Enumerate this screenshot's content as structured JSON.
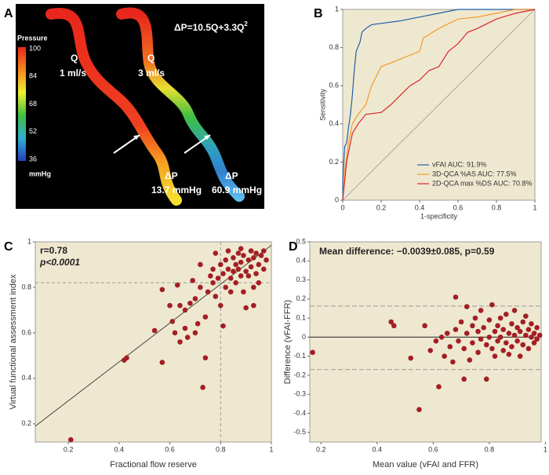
{
  "image_panel": {
    "panel_label": "A",
    "colorbar_title": "Pressure",
    "colorbar_unit": "mmHg",
    "colorbar_ticks": [
      100,
      84,
      68,
      52,
      36
    ],
    "left_flow": {
      "q": "Q",
      "rate": "1 ml/s"
    },
    "right_flow": {
      "q": "Q",
      "rate": "3 ml/s"
    },
    "equation": "ΔP=10.5Q+3.3Q",
    "equation_sup": "2",
    "left_drop": {
      "label": "ΔP",
      "value": "13.7 mmHg"
    },
    "right_drop": {
      "label": "ΔP",
      "value": "60.9 mmHg"
    }
  },
  "chart_data": [
    {
      "type": "line",
      "panel_label": "B",
      "x_label": "1-specificity",
      "y_label": "Sensitivity",
      "xlim": [
        0,
        1
      ],
      "ylim": [
        0,
        1
      ],
      "xticks": [
        0,
        0.2,
        0.4,
        0.6,
        0.8,
        1
      ],
      "yticks": [
        0,
        0.2,
        0.4,
        0.6,
        0.8,
        1
      ],
      "diagonal": true,
      "legend": "lower right",
      "series": [
        {
          "name": "vFAI AUC: 91.9%",
          "color": "#1f5fa8",
          "x": [
            0,
            0,
            0.01,
            0.02,
            0.03,
            0.04,
            0.05,
            0.06,
            0.07,
            0.09,
            0.1,
            0.12,
            0.15,
            0.3,
            0.4,
            0.5,
            0.6,
            1
          ],
          "y": [
            0,
            0.1,
            0.28,
            0.3,
            0.38,
            0.45,
            0.55,
            0.68,
            0.78,
            0.83,
            0.88,
            0.9,
            0.92,
            0.94,
            0.96,
            0.98,
            1,
            1
          ]
        },
        {
          "name": "3D-QCA %AS AUC: 77.5%",
          "color": "#f39a2b",
          "x": [
            0,
            0.01,
            0.03,
            0.05,
            0.08,
            0.12,
            0.15,
            0.2,
            0.25,
            0.3,
            0.35,
            0.4,
            0.42,
            0.5,
            0.6,
            0.7,
            0.8,
            0.9,
            1
          ],
          "y": [
            0,
            0.15,
            0.3,
            0.4,
            0.45,
            0.5,
            0.6,
            0.7,
            0.72,
            0.74,
            0.76,
            0.78,
            0.85,
            0.9,
            0.95,
            0.96,
            0.98,
            1,
            1
          ]
        },
        {
          "name": "2D-QCA max %DS AUC: 70.8%",
          "color": "#d9262c",
          "x": [
            0,
            0.02,
            0.05,
            0.08,
            0.12,
            0.2,
            0.25,
            0.3,
            0.35,
            0.4,
            0.45,
            0.5,
            0.55,
            0.6,
            0.65,
            0.7,
            0.8,
            0.9,
            1
          ],
          "y": [
            0,
            0.2,
            0.35,
            0.4,
            0.45,
            0.46,
            0.5,
            0.55,
            0.6,
            0.63,
            0.68,
            0.7,
            0.78,
            0.82,
            0.88,
            0.9,
            0.95,
            0.98,
            1
          ]
        }
      ]
    },
    {
      "type": "scatter",
      "panel_label": "C",
      "x_label": "Fractional flow reserve",
      "y_label": "Virtual functional assessment index",
      "xlim": [
        0.07,
        1
      ],
      "ylim": [
        0.12,
        1
      ],
      "xticks": [
        0.2,
        0.4,
        0.6,
        0.8,
        1
      ],
      "yticks": [
        0.2,
        0.4,
        0.6,
        0.8,
        1
      ],
      "color": "#a31f24",
      "annotations": [
        "r=0.78",
        "p<0.0001"
      ],
      "ref_x": 0.8,
      "ref_y": 0.82,
      "regression_line": {
        "x": [
          0.07,
          1
        ],
        "y": [
          0.19,
          0.985
        ]
      },
      "x": [
        0.21,
        0.42,
        0.43,
        0.54,
        0.57,
        0.57,
        0.6,
        0.61,
        0.62,
        0.63,
        0.64,
        0.64,
        0.66,
        0.66,
        0.67,
        0.68,
        0.69,
        0.7,
        0.7,
        0.71,
        0.72,
        0.72,
        0.73,
        0.74,
        0.74,
        0.75,
        0.76,
        0.77,
        0.77,
        0.78,
        0.78,
        0.79,
        0.8,
        0.8,
        0.81,
        0.81,
        0.82,
        0.82,
        0.83,
        0.83,
        0.84,
        0.84,
        0.85,
        0.85,
        0.86,
        0.86,
        0.87,
        0.87,
        0.88,
        0.88,
        0.89,
        0.89,
        0.9,
        0.9,
        0.91,
        0.91,
        0.92,
        0.92,
        0.93,
        0.93,
        0.94,
        0.94,
        0.95,
        0.95,
        0.96,
        0.97,
        0.97,
        0.98,
        0.93,
        0.88
      ],
      "y": [
        0.13,
        0.48,
        0.49,
        0.61,
        0.47,
        0.79,
        0.72,
        0.65,
        0.6,
        0.81,
        0.72,
        0.56,
        0.62,
        0.7,
        0.58,
        0.73,
        0.83,
        0.75,
        0.6,
        0.64,
        0.9,
        0.8,
        0.36,
        0.49,
        0.67,
        0.78,
        0.85,
        0.82,
        0.88,
        0.95,
        0.76,
        0.84,
        0.9,
        0.72,
        0.86,
        0.63,
        0.8,
        0.92,
        0.88,
        0.96,
        0.84,
        0.78,
        0.93,
        0.87,
        0.9,
        0.82,
        0.95,
        0.88,
        0.85,
        0.91,
        0.78,
        0.94,
        0.87,
        0.71,
        0.92,
        0.85,
        0.96,
        0.89,
        0.8,
        0.93,
        0.86,
        0.95,
        0.9,
        0.82,
        0.94,
        0.88,
        0.96,
        0.92,
        0.72,
        0.97
      ]
    },
    {
      "type": "scatter",
      "panel_label": "D",
      "title": "Mean difference: −0.0039±0.085, p=0.59",
      "x_label": "Mean value (vFAI and FFR)",
      "y_label": "Difference (vFAI-FFR)",
      "xlim": [
        0.16,
        0.985
      ],
      "ylim": [
        -0.55,
        0.5
      ],
      "xticks": [
        0.2,
        0.4,
        0.6,
        0.8,
        1
      ],
      "yticks": [
        -0.5,
        -0.4,
        -0.3,
        -0.2,
        -0.1,
        0,
        0.1,
        0.2,
        0.3,
        0.4,
        0.5
      ],
      "color": "#a31f24",
      "mean_line": 0,
      "limits": [
        0.163,
        -0.17
      ],
      "x": [
        0.17,
        0.45,
        0.46,
        0.52,
        0.55,
        0.57,
        0.59,
        0.61,
        0.62,
        0.63,
        0.64,
        0.65,
        0.66,
        0.67,
        0.68,
        0.68,
        0.69,
        0.7,
        0.71,
        0.71,
        0.72,
        0.72,
        0.73,
        0.74,
        0.74,
        0.75,
        0.76,
        0.76,
        0.77,
        0.77,
        0.78,
        0.79,
        0.79,
        0.8,
        0.8,
        0.81,
        0.81,
        0.82,
        0.82,
        0.83,
        0.83,
        0.84,
        0.84,
        0.85,
        0.85,
        0.86,
        0.86,
        0.87,
        0.87,
        0.88,
        0.88,
        0.89,
        0.89,
        0.9,
        0.9,
        0.91,
        0.91,
        0.92,
        0.92,
        0.93,
        0.93,
        0.94,
        0.94,
        0.95,
        0.95,
        0.96,
        0.96,
        0.97,
        0.97,
        0.98
      ],
      "y": [
        -0.08,
        0.08,
        0.06,
        -0.11,
        -0.38,
        0.06,
        -0.07,
        -0.02,
        -0.26,
        0,
        -0.1,
        0.02,
        -0.05,
        -0.13,
        0.21,
        0.04,
        -0.02,
        0.08,
        -0.22,
        -0.06,
        0.16,
        0.02,
        -0.12,
        0.06,
        -0.03,
        0.1,
        -0.08,
        0.03,
        0.14,
        -0.01,
        0.05,
        -0.22,
        -0.04,
        0.09,
        0,
        0.17,
        -0.06,
        0.03,
        -0.1,
        0.06,
        -0.02,
        0.1,
        0,
        -0.07,
        0.04,
        0.12,
        -0.03,
        0.02,
        -0.09,
        0.07,
        -0.05,
        0.01,
        0.14,
        -0.02,
        0.05,
        -0.1,
        0.03,
        0.08,
        -0.04,
        0.01,
        0.11,
        -0.06,
        0.04,
        0,
        0.07,
        -0.03,
        0.02,
        0.05,
        -0.01,
        0.01
      ]
    }
  ]
}
